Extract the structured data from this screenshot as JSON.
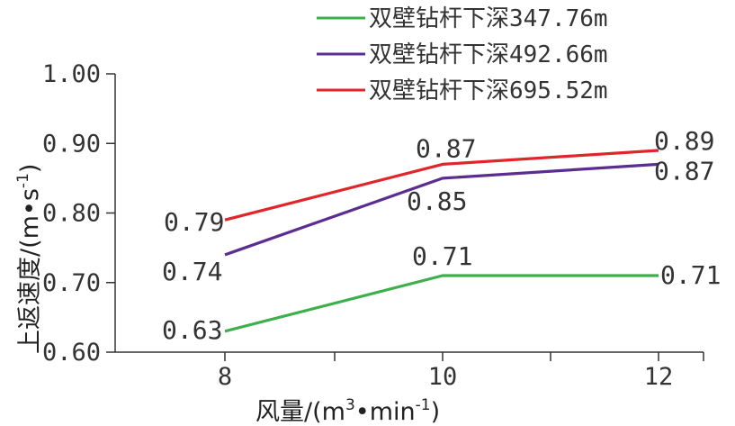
{
  "chart_data": {
    "type": "line",
    "x": [
      8,
      10,
      12
    ],
    "xticks": [
      "8",
      "10",
      "12"
    ],
    "yticks": [
      "0.60",
      "0.70",
      "0.80",
      "0.90",
      "1.00"
    ],
    "ylim": [
      0.6,
      1.0
    ],
    "xlabel_main": "风量/(m",
    "xlabel_sup1": "3",
    "xlabel_mid": "•min",
    "xlabel_sup2": "-1",
    "xlabel_end": ")",
    "ylabel_main": "上返速度/(m•s",
    "ylabel_sup": "-1",
    "ylabel_end": ")",
    "grid": false,
    "legend_position": "top-right",
    "series": [
      {
        "name": "双壁钻杆下深347.76m",
        "color": "#3cb04a",
        "values": [
          0.63,
          0.71,
          0.71
        ],
        "labels": [
          "0.63",
          "0.71",
          "0.71"
        ]
      },
      {
        "name": "双壁钻杆下深492.66m",
        "color": "#5b2d90",
        "values": [
          0.74,
          0.85,
          0.87
        ],
        "labels": [
          "0.74",
          "0.85",
          "0.87"
        ]
      },
      {
        "name": "双壁钻杆下深695.52m",
        "color": "#e0262a",
        "values": [
          0.79,
          0.87,
          0.89
        ],
        "labels": [
          "0.79",
          "0.87",
          "0.89"
        ]
      }
    ]
  }
}
